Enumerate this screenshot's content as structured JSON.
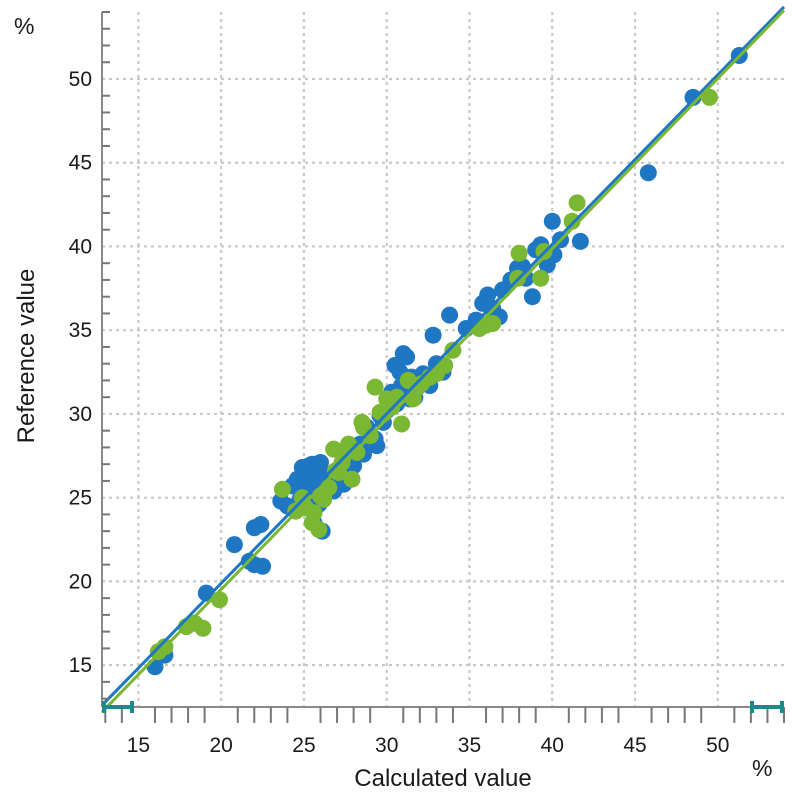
{
  "chart_data": {
    "type": "scatter",
    "xlabel": "Calculated value",
    "ylabel": "Reference value",
    "x_unit": "%",
    "y_unit": "%",
    "xlim": [
      12.8,
      54.0
    ],
    "ylim": [
      12.5,
      54.0
    ],
    "x_ticks": [
      15,
      20,
      25,
      30,
      35,
      40,
      45,
      50
    ],
    "y_ticks": [
      15,
      20,
      25,
      30,
      35,
      40,
      45,
      50
    ],
    "grid": true,
    "colors": {
      "series_1": "#1f77c4",
      "series_2": "#7ab733",
      "accent": "#1a8a8a"
    },
    "fit_lines": [
      {
        "series": "series_1",
        "x": [
          12.8,
          54.0
        ],
        "y": [
          12.6,
          54.3
        ]
      },
      {
        "series": "series_2",
        "x": [
          12.8,
          54.0
        ],
        "y": [
          12.2,
          54.1
        ]
      }
    ],
    "series": [
      {
        "id": "series_1",
        "x": [
          16.0,
          16.6,
          19.1,
          20.8,
          21.7,
          22.4,
          22.0,
          22.5,
          22.0,
          23.6,
          24.3,
          24.6,
          24.9,
          25.1,
          25.3,
          25.5,
          25.7,
          25.9,
          26.1,
          26.3,
          25.2,
          25.8,
          26.4,
          26.8,
          27.1,
          25.6,
          24.8,
          25.4,
          26.0,
          26.6,
          27.2,
          27.6,
          28.0,
          28.4,
          28.6,
          29.0,
          29.3,
          29.6,
          30.0,
          30.3,
          30.6,
          30.9,
          31.2,
          31.5,
          31.0,
          30.5,
          31.7,
          32.2,
          32.6,
          33.0,
          33.4,
          32.8,
          33.8,
          34.8,
          35.4,
          35.8,
          36.1,
          36.4,
          37.0,
          37.5,
          37.9,
          38.4,
          38.8,
          39.3,
          39.7,
          40.1,
          40.5,
          40.0,
          41.7,
          45.8,
          48.5,
          51.3,
          24.0,
          25.0,
          26.2,
          27.4,
          28.2,
          29.4,
          30.1,
          31.4,
          29.8,
          28.8,
          27.9,
          30.8,
          32.0,
          36.8,
          38.2,
          39.0
        ],
        "y": [
          14.9,
          15.6,
          19.3,
          22.2,
          21.2,
          23.4,
          23.2,
          20.9,
          21.0,
          24.8,
          25.7,
          26.1,
          26.8,
          25.3,
          26.9,
          27.0,
          25.8,
          24.6,
          23.0,
          26.4,
          25.0,
          27.0,
          26.3,
          25.4,
          26.7,
          23.5,
          25.0,
          26.3,
          27.1,
          25.8,
          26.5,
          27.4,
          26.9,
          28.2,
          27.6,
          28.7,
          28.5,
          29.9,
          30.2,
          31.3,
          30.6,
          31.7,
          33.4,
          32.2,
          33.6,
          32.9,
          31.0,
          32.4,
          31.7,
          33.0,
          32.5,
          34.7,
          35.9,
          35.1,
          35.6,
          36.6,
          37.1,
          36.3,
          37.4,
          38.0,
          38.7,
          38.1,
          37.0,
          40.1,
          38.9,
          39.5,
          40.4,
          41.5,
          40.3,
          44.4,
          48.9,
          51.4,
          24.5,
          26.0,
          25.6,
          25.8,
          27.8,
          28.1,
          30.8,
          30.9,
          29.5,
          29.2,
          27.4,
          32.5,
          32.0,
          35.8,
          38.8,
          39.8
        ]
      },
      {
        "id": "series_2",
        "x": [
          16.2,
          16.6,
          17.9,
          18.4,
          18.9,
          19.9,
          23.7,
          24.5,
          25.1,
          25.5,
          25.9,
          26.2,
          26.5,
          26.8,
          27.1,
          27.4,
          27.7,
          27.9,
          28.2,
          28.6,
          29.0,
          29.3,
          29.8,
          30.3,
          30.6,
          30.9,
          31.3,
          31.6,
          32.1,
          32.6,
          33.0,
          33.5,
          34.0,
          35.6,
          36.0,
          36.4,
          37.9,
          38.0,
          39.3,
          39.5,
          41.2,
          41.5,
          49.5,
          26.0,
          27.3,
          28.5,
          30.0,
          31.8,
          24.9,
          25.6,
          26.9,
          29.6
        ],
        "y": [
          15.8,
          16.1,
          17.3,
          17.5,
          17.2,
          18.9,
          25.5,
          24.2,
          24.4,
          23.5,
          23.1,
          24.9,
          25.6,
          27.9,
          26.5,
          27.5,
          28.2,
          26.1,
          27.7,
          29.2,
          28.7,
          31.6,
          30.0,
          30.4,
          31.0,
          29.4,
          32.0,
          30.9,
          31.8,
          32.2,
          32.4,
          32.9,
          33.8,
          35.1,
          35.3,
          35.4,
          38.1,
          39.6,
          38.1,
          39.7,
          41.5,
          42.6,
          48.9,
          25.1,
          27.1,
          29.5,
          30.9,
          31.5,
          25.0,
          24.1,
          26.6,
          30.1
        ]
      }
    ]
  }
}
